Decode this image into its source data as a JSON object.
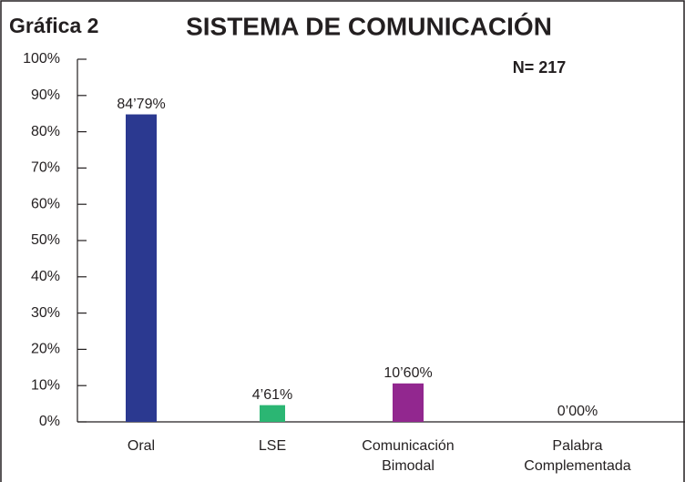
{
  "chart_data": {
    "type": "bar",
    "label": "Gráfica 2",
    "title": "SISTEMA DE COMUNICACIÓN",
    "annotation": "N= 217",
    "categories": [
      "Oral",
      "LSE",
      "Comunicación Bimodal",
      "Palabra Complementada"
    ],
    "values": [
      84.79,
      4.61,
      10.6,
      0
    ],
    "value_labels": [
      "84’79%",
      "4’61%",
      "10’60%",
      "0’00%"
    ],
    "colors": [
      "#2b3990",
      "#2bb673",
      "#92278f",
      "#888888"
    ],
    "ylim": [
      0,
      100
    ],
    "yticks": [
      {
        "value": 0,
        "label": "0%"
      },
      {
        "value": 10,
        "label": "10%"
      },
      {
        "value": 20,
        "label": "20%"
      },
      {
        "value": 30,
        "label": "30%"
      },
      {
        "value": 40,
        "label": "40%"
      },
      {
        "value": 50,
        "label": "50%"
      },
      {
        "value": 60,
        "label": "60%"
      },
      {
        "value": 70,
        "label": "70%"
      },
      {
        "value": 80,
        "label": "80%"
      },
      {
        "value": 90,
        "label": "90%"
      },
      {
        "value": 100,
        "label": "100%"
      }
    ]
  }
}
